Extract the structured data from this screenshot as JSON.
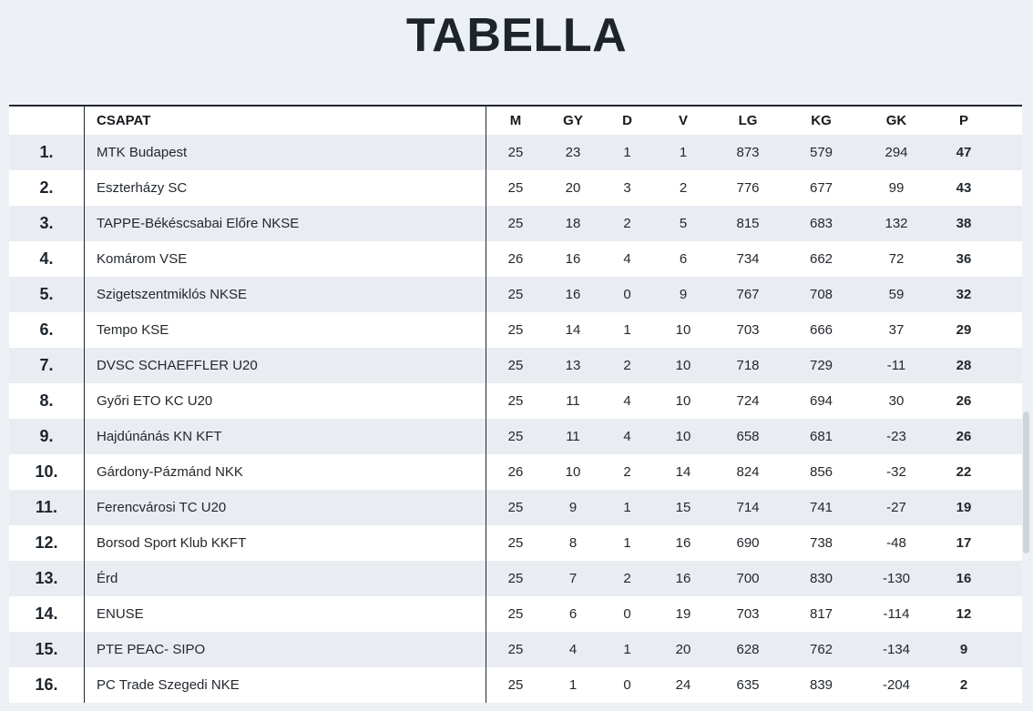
{
  "title": "TABELLA",
  "table": {
    "header": {
      "team_label": "CSAPAT",
      "stat_labels": [
        "M",
        "GY",
        "D",
        "V",
        "LG",
        "KG",
        "GK",
        "P"
      ]
    },
    "stat_keys": [
      "m",
      "gy",
      "d",
      "v",
      "lg",
      "kg",
      "gk",
      "p"
    ],
    "rows": [
      {
        "rank": "1.",
        "team": "MTK Budapest",
        "stats": [
          "25",
          "23",
          "1",
          "1",
          "873",
          "579",
          "294",
          "47"
        ]
      },
      {
        "rank": "2.",
        "team": "Eszterházy SC",
        "stats": [
          "25",
          "20",
          "3",
          "2",
          "776",
          "677",
          "99",
          "43"
        ]
      },
      {
        "rank": "3.",
        "team": "TAPPE-Békéscsabai Előre NKSE",
        "stats": [
          "25",
          "18",
          "2",
          "5",
          "815",
          "683",
          "132",
          "38"
        ]
      },
      {
        "rank": "4.",
        "team": "Komárom VSE",
        "stats": [
          "26",
          "16",
          "4",
          "6",
          "734",
          "662",
          "72",
          "36"
        ]
      },
      {
        "rank": "5.",
        "team": "Szigetszentmiklós NKSE",
        "stats": [
          "25",
          "16",
          "0",
          "9",
          "767",
          "708",
          "59",
          "32"
        ]
      },
      {
        "rank": "6.",
        "team": "Tempo KSE",
        "stats": [
          "25",
          "14",
          "1",
          "10",
          "703",
          "666",
          "37",
          "29"
        ]
      },
      {
        "rank": "7.",
        "team": "DVSC SCHAEFFLER U20",
        "stats": [
          "25",
          "13",
          "2",
          "10",
          "718",
          "729",
          "-11",
          "28"
        ]
      },
      {
        "rank": "8.",
        "team": "Győri ETO KC U20",
        "stats": [
          "25",
          "11",
          "4",
          "10",
          "724",
          "694",
          "30",
          "26"
        ]
      },
      {
        "rank": "9.",
        "team": "Hajdúnánás KN KFT",
        "stats": [
          "25",
          "11",
          "4",
          "10",
          "658",
          "681",
          "-23",
          "26"
        ]
      },
      {
        "rank": "10.",
        "team": "Gárdony-Pázmánd NKK",
        "stats": [
          "26",
          "10",
          "2",
          "14",
          "824",
          "856",
          "-32",
          "22"
        ]
      },
      {
        "rank": "11.",
        "team": "Ferencvárosi TC U20",
        "stats": [
          "25",
          "9",
          "1",
          "15",
          "714",
          "741",
          "-27",
          "19"
        ]
      },
      {
        "rank": "12.",
        "team": "Borsod Sport Klub KKFT",
        "stats": [
          "25",
          "8",
          "1",
          "16",
          "690",
          "738",
          "-48",
          "17"
        ]
      },
      {
        "rank": "13.",
        "team": "Érd",
        "stats": [
          "25",
          "7",
          "2",
          "16",
          "700",
          "830",
          "-130",
          "16"
        ]
      },
      {
        "rank": "14.",
        "team": "ENUSE",
        "stats": [
          "25",
          "6",
          "0",
          "19",
          "703",
          "817",
          "-114",
          "12"
        ]
      },
      {
        "rank": "15.",
        "team": "PTE PEAC- SIPO",
        "stats": [
          "25",
          "4",
          "1",
          "20",
          "628",
          "762",
          "-134",
          "9"
        ]
      },
      {
        "rank": "16.",
        "team": "PC Trade Szegedi NKE",
        "stats": [
          "25",
          "1",
          "0",
          "24",
          "635",
          "839",
          "-204",
          "2"
        ]
      }
    ]
  },
  "colors": {
    "page_background": "#edf1f5",
    "row_shaded": "#e9edf2",
    "row_plain": "#ffffff",
    "rule_dark": "#23282e",
    "text_dark": "#1d242b"
  }
}
